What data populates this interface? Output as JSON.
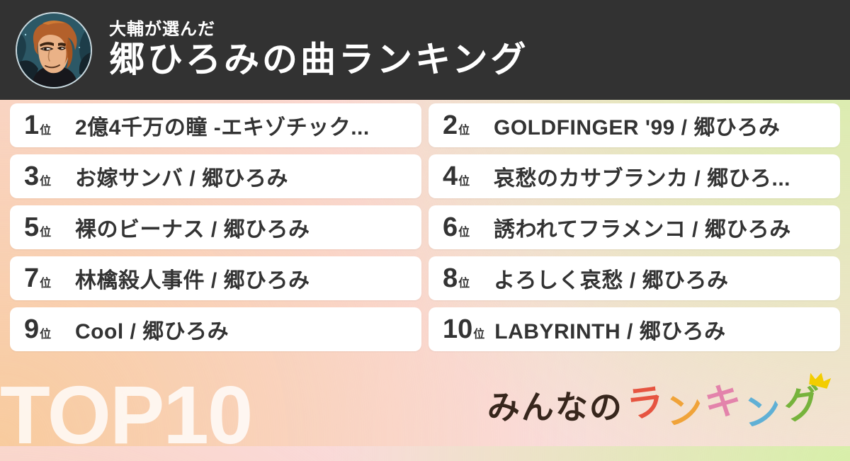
{
  "header": {
    "subtitle": "大輔が選んだ",
    "title": "郷ひろみの曲ランキング"
  },
  "ranking": {
    "rank_suffix": "位",
    "items": [
      {
        "rank": "1",
        "title": "2億4千万の瞳 -エキゾチック..."
      },
      {
        "rank": "2",
        "title": "GOLDFINGER '99 / 郷ひろみ"
      },
      {
        "rank": "3",
        "title": "お嫁サンバ / 郷ひろみ"
      },
      {
        "rank": "4",
        "title": "哀愁のカサブランカ / 郷ひろ..."
      },
      {
        "rank": "5",
        "title": "裸のビーナス / 郷ひろみ"
      },
      {
        "rank": "6",
        "title": "誘われてフラメンコ / 郷ひろみ"
      },
      {
        "rank": "7",
        "title": "林檎殺人事件 / 郷ひろみ"
      },
      {
        "rank": "8",
        "title": "よろしく哀愁 / 郷ひろみ"
      },
      {
        "rank": "9",
        "title": "Cool / 郷ひろみ"
      },
      {
        "rank": "10",
        "title": "LABYRINTH / 郷ひろみ"
      }
    ]
  },
  "footer": {
    "top_label": "TOP10",
    "logo": {
      "prefix": "みんなの",
      "prefix_color": "#37261c",
      "colored_chars": [
        {
          "char": "ラ",
          "color": "#e65440"
        },
        {
          "char": "ン",
          "color": "#f0a339"
        },
        {
          "char": "キ",
          "color": "#e383ab"
        },
        {
          "char": "ン",
          "color": "#5fb0d5"
        },
        {
          "char": "グ",
          "color": "#76b33c"
        }
      ],
      "crown_color": "#f3cd00"
    }
  },
  "colors": {
    "header_bg": "#323232",
    "card_bg": "#ffffff",
    "card_text": "#333333",
    "bg_top_left": "#fadadb",
    "bg_top_right": "#d7efa9",
    "bg_bottom_left": "#f8cb9e",
    "bg_bottom_right": "#fadfdc",
    "top_label_color": "rgba(255,255,255,0.8)"
  }
}
